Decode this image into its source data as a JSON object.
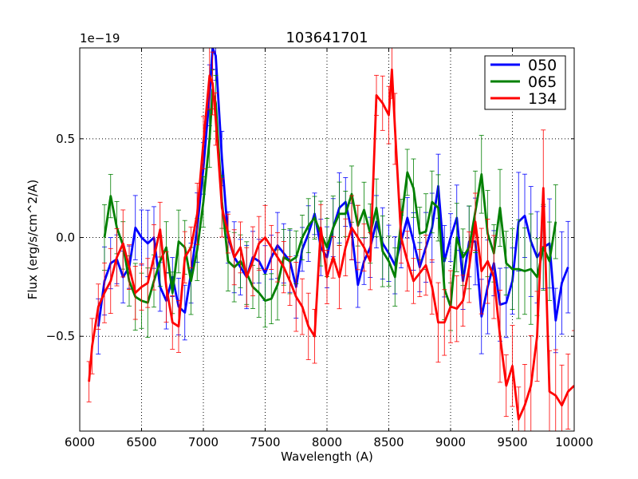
{
  "chart_data": {
    "type": "line",
    "title": "103641701",
    "xlabel": "Wavelength (A)",
    "ylabel": "Flux (erg/s/cm^2/A)",
    "offset_text": "1e−19",
    "xlim": [
      6000,
      10000
    ],
    "ylim": [
      -0.98,
      0.96
    ],
    "xticks": [
      6000,
      6500,
      7000,
      7500,
      8000,
      8500,
      9000,
      9500,
      10000
    ],
    "xtick_labels": [
      "6000",
      "6500",
      "7000",
      "7500",
      "8000",
      "8500",
      "9000",
      "9500",
      "10000"
    ],
    "yticks": [
      -0.5,
      0.0,
      0.5
    ],
    "ytick_labels": [
      "−0.5",
      "0.0",
      "0.5"
    ],
    "grid": true,
    "legend_position": "top-right",
    "series": [
      {
        "name": "050",
        "color": "#0000ff",
        "x": [
          6150,
          6200,
          6250,
          6300,
          6350,
          6400,
          6450,
          6500,
          6550,
          6600,
          6650,
          6700,
          6750,
          6800,
          6850,
          6900,
          6950,
          7000,
          7050,
          7075,
          7100,
          7150,
          7200,
          7250,
          7300,
          7350,
          7400,
          7450,
          7500,
          7550,
          7600,
          7650,
          7700,
          7750,
          7800,
          7850,
          7900,
          7950,
          8000,
          8050,
          8100,
          8150,
          8200,
          8250,
          8300,
          8350,
          8400,
          8450,
          8500,
          8550,
          8600,
          8650,
          8700,
          8750,
          8800,
          8850,
          8900,
          8950,
          9000,
          9050,
          9100,
          9150,
          9200,
          9250,
          9300,
          9350,
          9400,
          9450,
          9500,
          9550,
          9600,
          9650,
          9700,
          9750,
          9800,
          9850,
          9900,
          9950
        ],
        "y": [
          -0.45,
          -0.22,
          -0.13,
          -0.11,
          -0.2,
          -0.15,
          0.05,
          0.0,
          -0.03,
          0.0,
          -0.25,
          -0.32,
          -0.2,
          -0.35,
          -0.38,
          -0.18,
          0.05,
          0.35,
          0.72,
          0.96,
          0.92,
          0.4,
          0.0,
          -0.1,
          -0.15,
          -0.2,
          -0.1,
          -0.12,
          -0.18,
          -0.1,
          -0.04,
          -0.08,
          -0.12,
          -0.25,
          -0.06,
          0.02,
          0.12,
          -0.05,
          -0.1,
          0.05,
          0.15,
          0.18,
          0.03,
          -0.24,
          -0.12,
          -0.05,
          0.08,
          -0.03,
          -0.08,
          -0.14,
          -0.02,
          0.1,
          -0.02,
          -0.15,
          -0.05,
          0.05,
          0.26,
          -0.12,
          0.0,
          0.1,
          -0.22,
          -0.02,
          -0.02,
          -0.4,
          -0.25,
          -0.13,
          -0.34,
          -0.33,
          -0.22,
          0.08,
          0.11,
          -0.02,
          -0.1,
          -0.05,
          -0.03,
          -0.42,
          -0.23,
          -0.15
        ]
      },
      {
        "name": "065",
        "color": "#008000",
        "x": [
          6200,
          6250,
          6300,
          6350,
          6400,
          6450,
          6500,
          6550,
          6600,
          6650,
          6700,
          6750,
          6800,
          6850,
          6900,
          6950,
          7000,
          7050,
          7075,
          7100,
          7150,
          7200,
          7250,
          7300,
          7350,
          7400,
          7450,
          7500,
          7550,
          7600,
          7650,
          7700,
          7750,
          7800,
          7850,
          7900,
          7950,
          8000,
          8050,
          8100,
          8150,
          8200,
          8250,
          8300,
          8350,
          8400,
          8450,
          8500,
          8550,
          8600,
          8650,
          8700,
          8750,
          8800,
          8850,
          8900,
          8950,
          9000,
          9050,
          9100,
          9150,
          9200,
          9250,
          9300,
          9350,
          9400,
          9450,
          9500,
          9550,
          9600,
          9650,
          9700,
          9750,
          9800,
          9850
        ],
        "y": [
          0.0,
          0.21,
          0.05,
          -0.04,
          -0.22,
          -0.3,
          -0.32,
          -0.33,
          -0.22,
          -0.12,
          -0.05,
          -0.28,
          -0.02,
          -0.05,
          -0.22,
          -0.06,
          0.18,
          0.5,
          0.75,
          0.68,
          0.18,
          -0.12,
          -0.15,
          -0.12,
          -0.18,
          -0.25,
          -0.28,
          -0.32,
          -0.31,
          -0.24,
          -0.1,
          -0.12,
          -0.1,
          0.0,
          0.06,
          0.1,
          0.02,
          -0.05,
          0.05,
          0.12,
          0.12,
          0.22,
          0.06,
          0.14,
          0.02,
          0.15,
          -0.07,
          -0.12,
          -0.2,
          0.08,
          0.33,
          0.25,
          0.02,
          0.03,
          0.18,
          0.15,
          -0.26,
          -0.35,
          0.0,
          -0.1,
          -0.05,
          0.13,
          0.32,
          0.02,
          -0.08,
          0.15,
          -0.13,
          -0.16,
          -0.16,
          -0.17,
          -0.16,
          -0.2,
          -0.05,
          -0.12,
          0.08
        ]
      },
      {
        "name": "134",
        "color": "#ff0000",
        "x": [
          6075,
          6100,
          6150,
          6200,
          6250,
          6300,
          6350,
          6400,
          6450,
          6500,
          6550,
          6600,
          6650,
          6700,
          6750,
          6800,
          6850,
          6900,
          6950,
          7000,
          7050,
          7075,
          7100,
          7150,
          7200,
          7250,
          7300,
          7350,
          7400,
          7450,
          7500,
          7550,
          7600,
          7650,
          7700,
          7750,
          7800,
          7850,
          7900,
          7950,
          8000,
          8050,
          8100,
          8150,
          8200,
          8250,
          8300,
          8350,
          8400,
          8450,
          8500,
          8525,
          8550,
          8600,
          8650,
          8700,
          8750,
          8800,
          8850,
          8900,
          8950,
          9000,
          9050,
          9100,
          9150,
          9200,
          9250,
          9300,
          9350,
          9400,
          9450,
          9500,
          9550,
          9600,
          9650,
          9700,
          9750,
          9800,
          9850,
          9900,
          9950,
          10000
        ],
        "y": [
          -0.73,
          -0.55,
          -0.35,
          -0.28,
          -0.22,
          -0.1,
          -0.03,
          -0.15,
          -0.28,
          -0.25,
          -0.23,
          -0.1,
          0.04,
          -0.25,
          -0.43,
          -0.45,
          -0.1,
          -0.05,
          0.12,
          0.48,
          0.82,
          0.78,
          0.6,
          0.15,
          0.02,
          -0.1,
          -0.05,
          -0.2,
          -0.12,
          -0.03,
          0.0,
          -0.05,
          -0.1,
          -0.15,
          -0.22,
          -0.3,
          -0.35,
          -0.45,
          -0.5,
          0.05,
          -0.2,
          -0.1,
          -0.2,
          -0.05,
          0.05,
          0.0,
          -0.05,
          -0.12,
          0.72,
          0.68,
          0.62,
          0.85,
          0.55,
          0.0,
          -0.12,
          -0.22,
          -0.18,
          -0.14,
          -0.25,
          -0.43,
          -0.43,
          -0.35,
          -0.36,
          -0.32,
          -0.15,
          0.08,
          -0.17,
          -0.12,
          -0.2,
          -0.5,
          -0.75,
          -0.65,
          -0.92,
          -0.85,
          -0.75,
          -0.5,
          0.25,
          -0.78,
          -0.8,
          -0.85,
          -0.78,
          -0.75
        ]
      }
    ]
  }
}
